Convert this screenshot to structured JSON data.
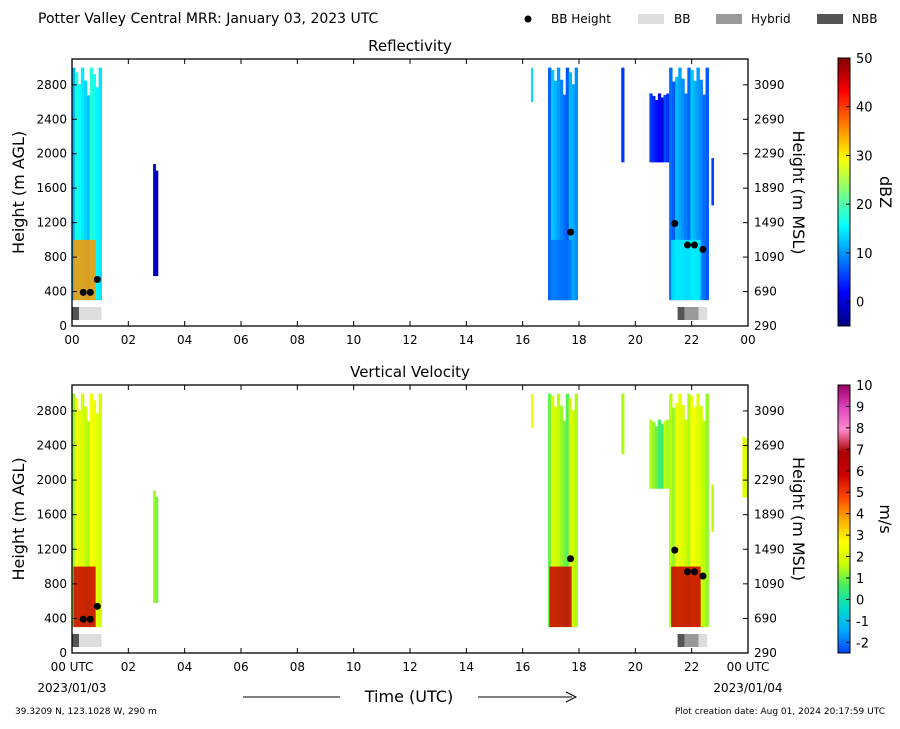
{
  "header": {
    "title": "Potter Valley Central MRR:  January 03, 2023 UTC",
    "legend": [
      {
        "key": "bb-height",
        "label": "BB Height",
        "marker": "dot",
        "color": "#000000"
      },
      {
        "key": "bb",
        "label": "BB",
        "marker": "box",
        "color": "#dddddd"
      },
      {
        "key": "hybrid",
        "label": "Hybrid",
        "marker": "box",
        "color": "#999999"
      },
      {
        "key": "nbb",
        "label": "NBB",
        "marker": "box",
        "color": "#555555"
      }
    ]
  },
  "footer": {
    "coordinates": "39.3209 N, 123.1028 W, 290 m",
    "creation_date": "Plot creation date: Aug 01, 2024 20:17:59 UTC"
  },
  "chart_data": [
    {
      "type": "heatmap",
      "title": "Reflectivity",
      "ylabel": "Height (m AGL)",
      "ylabel_right": "Height (m MSL)",
      "xlim": [
        0,
        24
      ],
      "ylim": [
        0,
        3100
      ],
      "x_tick_labels": [
        "00",
        "02",
        "04",
        "06",
        "08",
        "10",
        "12",
        "14",
        "16",
        "18",
        "20",
        "22",
        "00"
      ],
      "y_ticks": [
        0,
        400,
        800,
        1200,
        1600,
        2000,
        2400,
        2800
      ],
      "y_ticks_right": [
        290,
        690,
        1090,
        1490,
        1890,
        2290,
        2690,
        3090
      ],
      "colorbar": {
        "label": "dBZ",
        "min": -5,
        "max": 50,
        "ticks": [
          0,
          10,
          20,
          30,
          40,
          50
        ],
        "stops": [
          "#00007f",
          "#0000ff",
          "#007fff",
          "#00ffff",
          "#7fff7f",
          "#ffff00",
          "#ff7f00",
          "#ff0000",
          "#7f0000"
        ]
      },
      "bb_height_points": [
        {
          "t": 0.4,
          "h": 390
        },
        {
          "t": 0.65,
          "h": 390
        },
        {
          "t": 0.9,
          "h": 540
        },
        {
          "t": 17.7,
          "h": 1090
        },
        {
          "t": 21.4,
          "h": 1190
        },
        {
          "t": 21.85,
          "h": 940
        },
        {
          "t": 22.1,
          "h": 940
        },
        {
          "t": 22.4,
          "h": 890
        }
      ],
      "bb_type_segments": [
        {
          "start": 0.0,
          "end": 0.25,
          "type": "nbb"
        },
        {
          "start": 0.25,
          "end": 1.05,
          "type": "bb"
        },
        {
          "start": 21.5,
          "end": 21.75,
          "type": "nbb"
        },
        {
          "start": 21.75,
          "end": 22.25,
          "type": "hybrid"
        },
        {
          "start": 22.25,
          "end": 22.55,
          "type": "bb"
        }
      ],
      "echo_columns": [
        {
          "start": 0.0,
          "end": 1.05,
          "bottom": 300,
          "top": 3000,
          "value": 15,
          "low_value": 35
        },
        {
          "start": 2.88,
          "end": 3.05,
          "bottom": 580,
          "top": 1880,
          "value": 0
        },
        {
          "start": 16.3,
          "end": 16.35,
          "bottom": 2600,
          "top": 3000,
          "value": 12
        },
        {
          "start": 16.9,
          "end": 17.95,
          "bottom": 300,
          "top": 3000,
          "value": 10,
          "low_value": 8
        },
        {
          "start": 19.5,
          "end": 19.6,
          "bottom": 1900,
          "top": 3000,
          "value": 5
        },
        {
          "start": 20.5,
          "end": 21.2,
          "bottom": 1900,
          "top": 2700,
          "value": 3
        },
        {
          "start": 21.2,
          "end": 22.6,
          "bottom": 300,
          "top": 3000,
          "value": 10,
          "low_value": 15
        },
        {
          "start": 22.7,
          "end": 22.78,
          "bottom": 1400,
          "top": 1950,
          "value": 5
        }
      ]
    },
    {
      "type": "heatmap",
      "title": "Vertical Velocity",
      "ylabel": "Height (m AGL)",
      "ylabel_right": "Height (m MSL)",
      "xlabel": "Time (UTC)",
      "xlim": [
        0,
        24
      ],
      "ylim": [
        0,
        3100
      ],
      "x_tick_labels": [
        "00 UTC",
        "02",
        "04",
        "06",
        "08",
        "10",
        "12",
        "14",
        "16",
        "18",
        "20",
        "22",
        "00 UTC"
      ],
      "x_date_labels": [
        "2023/01/03",
        "2023/01/04"
      ],
      "y_ticks": [
        0,
        400,
        800,
        1200,
        1600,
        2000,
        2400,
        2800
      ],
      "y_ticks_right": [
        290,
        690,
        1090,
        1490,
        1890,
        2290,
        2690,
        3090
      ],
      "colorbar": {
        "label": "m/s",
        "min": -2.5,
        "max": 10,
        "ticks": [
          -2,
          -1,
          0,
          1,
          2,
          3,
          4,
          5,
          6,
          7,
          8,
          9,
          10
        ],
        "stops": [
          "#0044ff",
          "#00aaff",
          "#00ddcc",
          "#44ee66",
          "#ccff00",
          "#ffff00",
          "#ffaa00",
          "#ff4400",
          "#cc0000",
          "#aa0000",
          "#ff88cc",
          "#dd44bb",
          "#990066"
        ]
      },
      "bb_height_points": [
        {
          "t": 0.4,
          "h": 390
        },
        {
          "t": 0.65,
          "h": 390
        },
        {
          "t": 0.9,
          "h": 540
        },
        {
          "t": 17.7,
          "h": 1090
        },
        {
          "t": 21.4,
          "h": 1190
        },
        {
          "t": 21.85,
          "h": 940
        },
        {
          "t": 22.1,
          "h": 940
        },
        {
          "t": 22.4,
          "h": 890
        }
      ],
      "bb_type_segments": [
        {
          "start": 0.0,
          "end": 0.25,
          "type": "nbb"
        },
        {
          "start": 0.25,
          "end": 1.05,
          "type": "bb"
        },
        {
          "start": 21.5,
          "end": 21.75,
          "type": "nbb"
        },
        {
          "start": 21.75,
          "end": 22.25,
          "type": "hybrid"
        },
        {
          "start": 22.25,
          "end": 22.55,
          "type": "bb"
        }
      ],
      "echo_columns": [
        {
          "start": 0.0,
          "end": 1.05,
          "bottom": 300,
          "top": 3000,
          "value": 2,
          "low_value": 6
        },
        {
          "start": 2.88,
          "end": 3.05,
          "bottom": 580,
          "top": 1880,
          "value": 1.5
        },
        {
          "start": 16.3,
          "end": 16.35,
          "bottom": 2600,
          "top": 3000,
          "value": 2
        },
        {
          "start": 16.9,
          "end": 17.95,
          "bottom": 300,
          "top": 3000,
          "value": 1.5,
          "low_value": 6
        },
        {
          "start": 19.5,
          "end": 19.6,
          "bottom": 2300,
          "top": 3000,
          "value": 1.5
        },
        {
          "start": 20.5,
          "end": 21.2,
          "bottom": 1900,
          "top": 2700,
          "value": 1
        },
        {
          "start": 21.2,
          "end": 22.6,
          "bottom": 300,
          "top": 3000,
          "value": 2,
          "low_value": 6
        },
        {
          "start": 22.7,
          "end": 22.78,
          "bottom": 1400,
          "top": 1950,
          "value": 1.5
        },
        {
          "start": 23.8,
          "end": 24.0,
          "bottom": 1800,
          "top": 2500,
          "value": 1.5
        }
      ]
    }
  ]
}
